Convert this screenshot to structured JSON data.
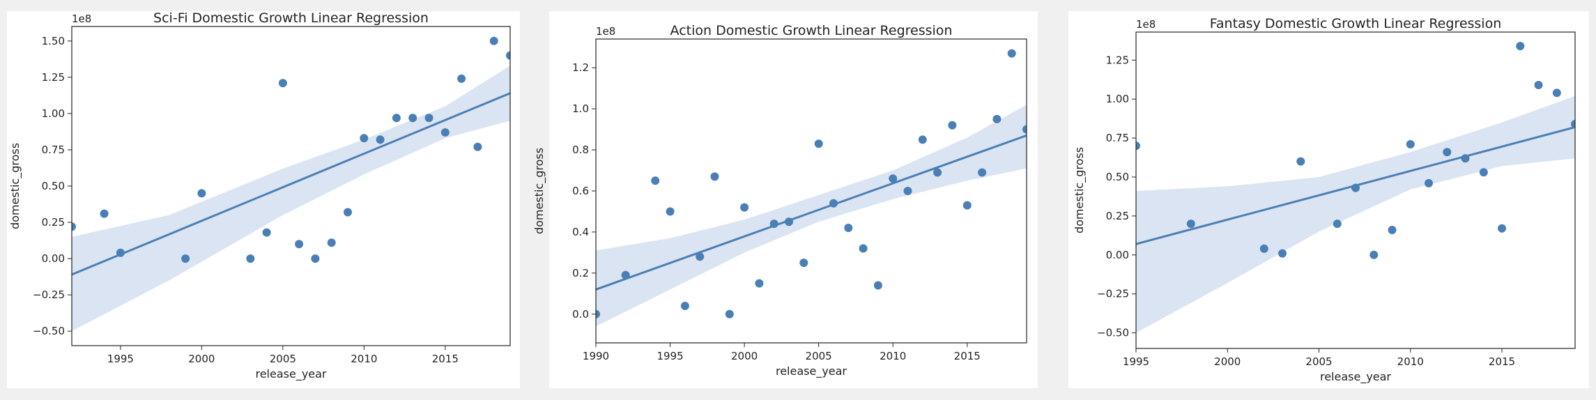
{
  "chart_data": [
    {
      "type": "scatter",
      "title": "Sci-Fi Domestic Growth Linear Regression",
      "xlabel": "release_year",
      "ylabel": "domestic_gross",
      "offset_label": "1e8",
      "xlim": [
        1992,
        2019
      ],
      "ylim": [
        -0.6,
        1.6
      ],
      "x_ticks": [
        1995,
        2000,
        2005,
        2010,
        2015
      ],
      "x_tick_labels": [
        "1995",
        "2000",
        "2005",
        "2010",
        "2015"
      ],
      "y_ticks": [
        -0.5,
        -0.25,
        0,
        0.25,
        0.5,
        0.75,
        1.0,
        1.25,
        1.5
      ],
      "y_tick_labels": [
        "−0.50",
        "−0.25",
        "0.00",
        "0.25",
        "0.50",
        "0.75",
        "1.00",
        "1.25",
        "1.50"
      ],
      "points": [
        {
          "x": 1992,
          "y": 0.22
        },
        {
          "x": 1994,
          "y": 0.31
        },
        {
          "x": 1995,
          "y": 0.04
        },
        {
          "x": 1999,
          "y": 0.0
        },
        {
          "x": 2000,
          "y": 0.45
        },
        {
          "x": 2003,
          "y": 0.0
        },
        {
          "x": 2004,
          "y": 0.18
        },
        {
          "x": 2005,
          "y": 1.21
        },
        {
          "x": 2006,
          "y": 0.1
        },
        {
          "x": 2007,
          "y": 0.0
        },
        {
          "x": 2008,
          "y": 0.11
        },
        {
          "x": 2009,
          "y": 0.32
        },
        {
          "x": 2010,
          "y": 0.83
        },
        {
          "x": 2011,
          "y": 0.82
        },
        {
          "x": 2012,
          "y": 0.97
        },
        {
          "x": 2013,
          "y": 0.97
        },
        {
          "x": 2014,
          "y": 0.97
        },
        {
          "x": 2015,
          "y": 0.87
        },
        {
          "x": 2016,
          "y": 1.24
        },
        {
          "x": 2017,
          "y": 0.77
        },
        {
          "x": 2018,
          "y": 1.5
        },
        {
          "x": 2019,
          "y": 1.4
        }
      ],
      "regression": {
        "x": [
          1992,
          2019
        ],
        "y": [
          -0.11,
          1.14
        ]
      },
      "ci_band": {
        "x": [
          1992,
          1998,
          2005,
          2010,
          2015,
          2019
        ],
        "lower": [
          -0.5,
          -0.15,
          0.3,
          0.58,
          0.83,
          0.95
        ],
        "upper": [
          0.15,
          0.3,
          0.62,
          0.82,
          1.05,
          1.33
        ]
      }
    },
    {
      "type": "scatter",
      "title": "Action Domestic Growth Linear Regression",
      "xlabel": "release_year",
      "ylabel": "domestic_gross",
      "offset_label": "1e8",
      "xlim": [
        1990,
        2019
      ],
      "ylim": [
        -0.14,
        1.34
      ],
      "x_ticks": [
        1990,
        1995,
        2000,
        2005,
        2010,
        2015
      ],
      "x_tick_labels": [
        "1990",
        "1995",
        "2000",
        "2005",
        "2010",
        "2015"
      ],
      "y_ticks": [
        0,
        0.2,
        0.4,
        0.6,
        0.8,
        1.0,
        1.2
      ],
      "y_tick_labels": [
        "0.0",
        "0.2",
        "0.4",
        "0.6",
        "0.8",
        "1.0",
        "1.2"
      ],
      "points": [
        {
          "x": 1990,
          "y": 0.0
        },
        {
          "x": 1992,
          "y": 0.19
        },
        {
          "x": 1994,
          "y": 0.65
        },
        {
          "x": 1995,
          "y": 0.5
        },
        {
          "x": 1996,
          "y": 0.04
        },
        {
          "x": 1997,
          "y": 0.28
        },
        {
          "x": 1998,
          "y": 0.67
        },
        {
          "x": 1999,
          "y": 0.0
        },
        {
          "x": 2000,
          "y": 0.52
        },
        {
          "x": 2001,
          "y": 0.15
        },
        {
          "x": 2002,
          "y": 0.44
        },
        {
          "x": 2003,
          "y": 0.45
        },
        {
          "x": 2004,
          "y": 0.25
        },
        {
          "x": 2005,
          "y": 0.83
        },
        {
          "x": 2006,
          "y": 0.54
        },
        {
          "x": 2007,
          "y": 0.42
        },
        {
          "x": 2008,
          "y": 0.32
        },
        {
          "x": 2009,
          "y": 0.14
        },
        {
          "x": 2010,
          "y": 0.66
        },
        {
          "x": 2011,
          "y": 0.6
        },
        {
          "x": 2012,
          "y": 0.85
        },
        {
          "x": 2013,
          "y": 0.69
        },
        {
          "x": 2014,
          "y": 0.92
        },
        {
          "x": 2015,
          "y": 0.53
        },
        {
          "x": 2016,
          "y": 0.69
        },
        {
          "x": 2017,
          "y": 0.95
        },
        {
          "x": 2018,
          "y": 1.27
        },
        {
          "x": 2019,
          "y": 0.9
        }
      ],
      "regression": {
        "x": [
          1990,
          2019
        ],
        "y": [
          0.12,
          0.87
        ]
      },
      "ci_band": {
        "x": [
          1990,
          1995,
          2000,
          2005,
          2010,
          2015,
          2019
        ],
        "lower": [
          -0.06,
          0.12,
          0.3,
          0.45,
          0.56,
          0.65,
          0.71
        ],
        "upper": [
          0.31,
          0.37,
          0.46,
          0.58,
          0.7,
          0.86,
          1.02
        ]
      }
    },
    {
      "type": "scatter",
      "title": "Fantasy Domestic Growth Linear Regression",
      "xlabel": "release_year",
      "ylabel": "domestic_gross",
      "offset_label": "1e8",
      "xlim": [
        1995,
        2019
      ],
      "ylim": [
        -0.6,
        1.43
      ],
      "x_ticks": [
        1995,
        2000,
        2005,
        2010,
        2015
      ],
      "x_tick_labels": [
        "1995",
        "2000",
        "2005",
        "2010",
        "2015"
      ],
      "y_ticks": [
        -0.5,
        -0.25,
        0,
        0.25,
        0.5,
        0.75,
        1.0,
        1.25
      ],
      "y_tick_labels": [
        "−0.50",
        "−0.25",
        "0.00",
        "0.25",
        "0.50",
        "0.75",
        "1.00",
        "1.25"
      ],
      "points": [
        {
          "x": 1995,
          "y": 0.7
        },
        {
          "x": 1998,
          "y": 0.2
        },
        {
          "x": 2002,
          "y": 0.04
        },
        {
          "x": 2003,
          "y": 0.01
        },
        {
          "x": 2004,
          "y": 0.6
        },
        {
          "x": 2006,
          "y": 0.2
        },
        {
          "x": 2007,
          "y": 0.43
        },
        {
          "x": 2008,
          "y": 0.0
        },
        {
          "x": 2009,
          "y": 0.16
        },
        {
          "x": 2010,
          "y": 0.71
        },
        {
          "x": 2011,
          "y": 0.46
        },
        {
          "x": 2012,
          "y": 0.66
        },
        {
          "x": 2013,
          "y": 0.62
        },
        {
          "x": 2014,
          "y": 0.53
        },
        {
          "x": 2015,
          "y": 0.17
        },
        {
          "x": 2016,
          "y": 1.34
        },
        {
          "x": 2017,
          "y": 1.09
        },
        {
          "x": 2018,
          "y": 1.04
        },
        {
          "x": 2019,
          "y": 0.84
        }
      ],
      "regression": {
        "x": [
          1995,
          2019
        ],
        "y": [
          0.07,
          0.82
        ]
      },
      "ci_band": {
        "x": [
          1995,
          2000,
          2005,
          2010,
          2015,
          2019
        ],
        "lower": [
          -0.5,
          -0.18,
          0.15,
          0.42,
          0.57,
          0.62
        ],
        "upper": [
          0.41,
          0.44,
          0.5,
          0.66,
          0.85,
          1.02
        ]
      }
    }
  ],
  "colors": {
    "points": "#4a7fb5",
    "line": "#4a7fb5",
    "band": "#d3dff0",
    "axes": "#222222",
    "panel_bg": "#ffffff",
    "page_bg": "#f0f0f0"
  }
}
